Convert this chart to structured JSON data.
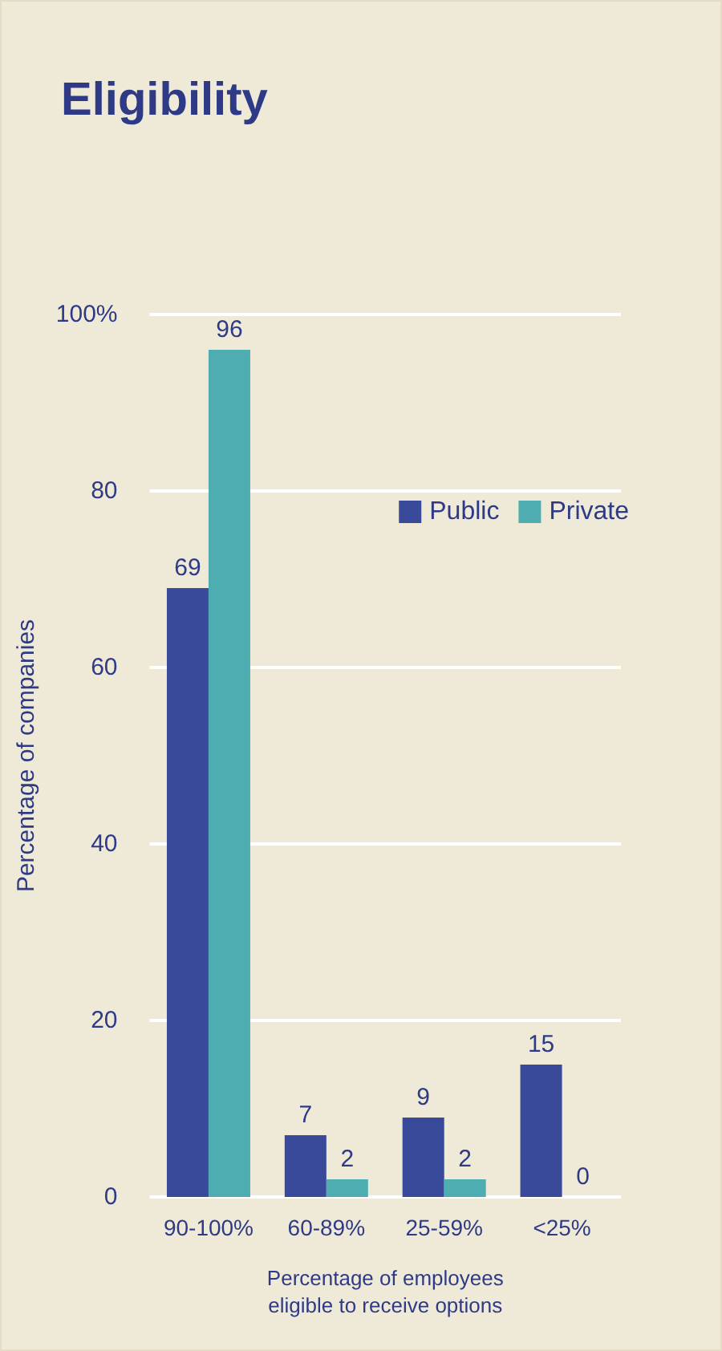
{
  "chart_data": {
    "type": "bar",
    "title": "Eligibility",
    "xlabel": "Percentage of employees\neligible to receive options",
    "ylabel": "Percentage of companies",
    "categories": [
      "90-100%",
      "60-89%",
      "25-59%",
      "<25%"
    ],
    "series": [
      {
        "name": "Public",
        "color": "#3a4a9b",
        "values": [
          69,
          7,
          9,
          15
        ]
      },
      {
        "name": "Private",
        "color": "#4eadb0",
        "values": [
          96,
          2,
          2,
          0
        ]
      }
    ],
    "ylim": [
      0,
      100
    ],
    "yticks": [
      0,
      20,
      40,
      60,
      80,
      {
        "value": 100,
        "label": "100%"
      }
    ],
    "grid": "y",
    "legend": "top right",
    "data_labels": true
  }
}
